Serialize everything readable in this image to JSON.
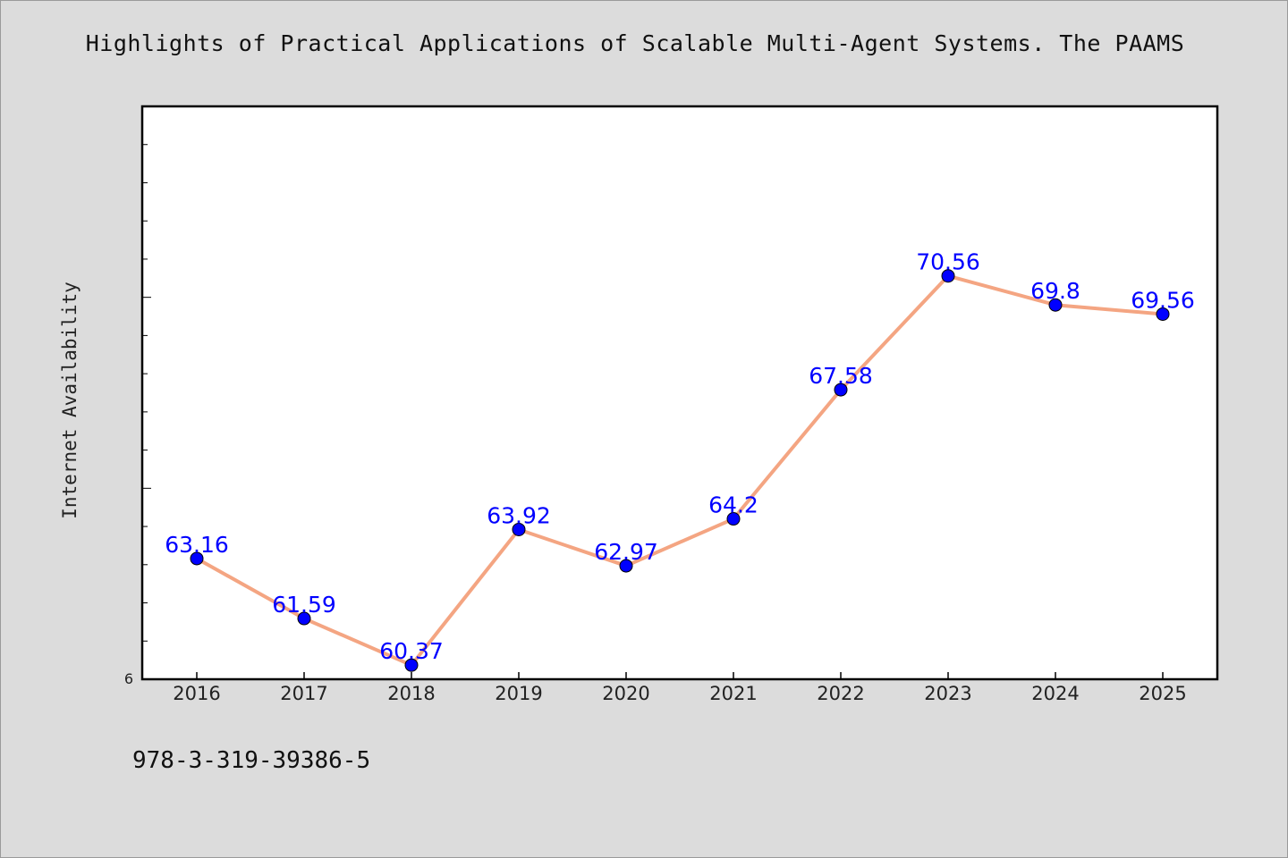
{
  "title": "Highlights of Practical Applications of Scalable Multi-Agent Systems. The PAAMS",
  "footer_text": "978-3-319-39386-5",
  "colors": {
    "background": "#dcdcdc",
    "plot_background": "#ffffff",
    "line": "#f4a582",
    "marker": "#0000ff",
    "data_label": "#0000ff"
  },
  "chart_data": {
    "type": "line",
    "title": "Highlights of Practical Applications of Scalable Multi-Agent Systems. The PAAMS",
    "xlabel": "",
    "ylabel": "Internet Availability",
    "categories": [
      "2016",
      "2017",
      "2018",
      "2019",
      "2020",
      "2021",
      "2022",
      "2023",
      "2024",
      "2025"
    ],
    "series": [
      {
        "values": [
          63.16,
          61.59,
          60.37,
          63.92,
          62.97,
          64.2,
          67.58,
          70.56,
          69.8,
          69.56
        ]
      }
    ],
    "data_labels": [
      "63.16",
      "61.59",
      "60.37",
      "63.92",
      "62.97",
      "64.2",
      "67.58",
      "70.56",
      "69.8",
      "69.56"
    ],
    "y_tick_label": "6",
    "ylim": [
      60,
      75
    ],
    "grid": false,
    "legend": "none"
  }
}
